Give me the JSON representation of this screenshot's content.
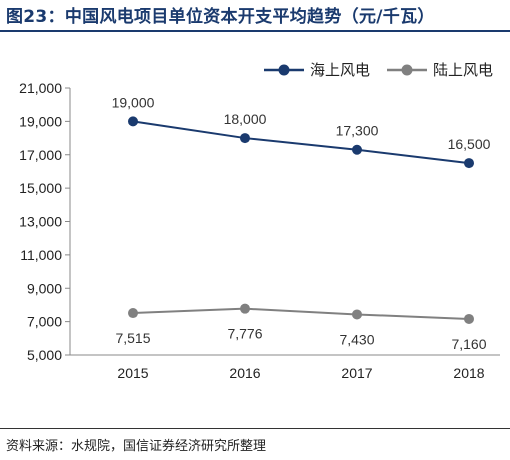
{
  "header": {
    "title": "图23：中国风电项目单位资本开支平均趋势（元/千瓦）"
  },
  "footer": {
    "source": "资料来源：水规院，国信证券经济研究所整理"
  },
  "chart_data": {
    "type": "line",
    "title": "图23：中国风电项目单位资本开支平均趋势（元/千瓦）",
    "categories": [
      "2015",
      "2016",
      "2017",
      "2018"
    ],
    "series": [
      {
        "name": "海上风电",
        "values": [
          19000,
          18000,
          17300,
          16500
        ],
        "labels": [
          "19,000",
          "18,000",
          "17,300",
          "16,500"
        ],
        "color": "#1a3a6e",
        "label_position": "above"
      },
      {
        "name": "陆上风电",
        "values": [
          7515,
          7776,
          7430,
          7160
        ],
        "labels": [
          "7,515",
          "7,776",
          "7,430",
          "7,160"
        ],
        "color": "#808080",
        "label_position": "below"
      }
    ],
    "y_ticks": [
      "5,000",
      "7,000",
      "9,000",
      "11,000",
      "13,000",
      "15,000",
      "17,000",
      "19,000",
      "21,000"
    ],
    "y_tick_values": [
      5000,
      7000,
      9000,
      11000,
      13000,
      15000,
      17000,
      19000,
      21000
    ],
    "ylim": [
      5000,
      21000
    ],
    "grid": false,
    "legend": "top-right"
  }
}
